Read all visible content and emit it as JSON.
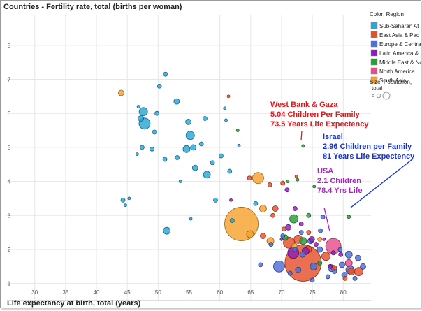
{
  "chart_data": {
    "type": "scatter",
    "title": "Countries - Fertility rate, total (births per woman)",
    "xlabel": "Life expectancy at birth, total (years)",
    "ylabel": "",
    "xlim": [
      25.5,
      84.5
    ],
    "ylim": [
      0.5,
      8.9
    ],
    "xticks": [
      "30",
      "35",
      "40",
      "45",
      "50",
      "55",
      "60",
      "65",
      "70",
      "75",
      "80"
    ],
    "yticks": [
      "1",
      "2",
      "3",
      "4",
      "5",
      "6",
      "7",
      "8"
    ],
    "legend": {
      "title": "Color: Region",
      "entries": [
        {
          "label": "Sub-Saharan At",
          "color": "#2aa6d4"
        },
        {
          "label": "East Asia & Pac",
          "color": "#e5502b"
        },
        {
          "label": "Europe & Centra",
          "color": "#4d6fd6"
        },
        {
          "label": "Latin America &",
          "color": "#8c1eb8"
        },
        {
          "label": "Middle East & Nc",
          "color": "#2b9c3a"
        },
        {
          "label": "North America",
          "color": "#e84d8a"
        },
        {
          "label": "South Asia",
          "color": "#f7a22e"
        }
      ],
      "size_title": "Size: Population,",
      "size_title2": "total"
    },
    "series": [
      {
        "name": "Sub-Saharan At",
        "points": [
          [
            47.6,
            6.05,
            6
          ],
          [
            47.8,
            5.7,
            8
          ],
          [
            47.2,
            5.85,
            4
          ],
          [
            50.2,
            6.8,
            3
          ],
          [
            51.2,
            7.15,
            3
          ],
          [
            49.8,
            6.0,
            3
          ],
          [
            53.0,
            6.35,
            4
          ],
          [
            54.9,
            5.75,
            4
          ],
          [
            55.2,
            5.35,
            6
          ],
          [
            57.6,
            5.85,
            3
          ],
          [
            55.7,
            5.0,
            4
          ],
          [
            54.6,
            4.95,
            5
          ],
          [
            57.0,
            5.1,
            3
          ],
          [
            56.0,
            4.4,
            4
          ],
          [
            58.8,
            4.55,
            3
          ],
          [
            60.2,
            4.75,
            3
          ],
          [
            57.9,
            4.2,
            5
          ],
          [
            53.1,
            4.7,
            3
          ],
          [
            51.1,
            4.65,
            3
          ],
          [
            49.0,
            4.95,
            3
          ],
          [
            49.4,
            5.45,
            3
          ],
          [
            47.4,
            5.0,
            3
          ],
          [
            46.6,
            4.8,
            2
          ],
          [
            45.3,
            3.5,
            2
          ],
          [
            44.3,
            3.45,
            3
          ],
          [
            44.7,
            3.3,
            2
          ],
          [
            51.4,
            2.55,
            5
          ],
          [
            59.3,
            3.45,
            3
          ],
          [
            61.6,
            4.3,
            3
          ],
          [
            62.0,
            2.85,
            3
          ],
          [
            55.3,
            2.9,
            2
          ],
          [
            63.1,
            5.05,
            2
          ],
          [
            61.0,
            5.8,
            2
          ],
          [
            53.6,
            4.0,
            2
          ],
          [
            46.8,
            6.2,
            2
          ],
          [
            65.8,
            3.35,
            3
          ],
          [
            60.8,
            6.15,
            2
          ]
        ]
      },
      {
        "name": "East Asia & Pac",
        "points": [
          [
            73.5,
            1.6,
            26
          ],
          [
            71.2,
            2.2,
            8
          ],
          [
            72.7,
            2.3,
            6
          ],
          [
            77.2,
            1.8,
            6
          ],
          [
            74.3,
            2.0,
            5
          ],
          [
            69.0,
            3.2,
            4
          ],
          [
            67.0,
            2.4,
            4
          ],
          [
            70.4,
            2.6,
            3
          ],
          [
            78.5,
            1.45,
            4
          ],
          [
            81.3,
            1.35,
            5
          ],
          [
            82.5,
            1.35,
            6
          ],
          [
            64.8,
            4.1,
            3
          ],
          [
            68.1,
            3.9,
            3
          ],
          [
            70.2,
            3.95,
            3
          ],
          [
            61.4,
            6.5,
            2
          ],
          [
            74.4,
            2.5,
            3
          ],
          [
            72.4,
            4.15,
            2
          ],
          [
            68.6,
            3.0,
            3
          ],
          [
            80.3,
            1.15,
            3
          ]
        ]
      },
      {
        "name": "Europe & Centra",
        "points": [
          [
            69.6,
            1.5,
            8
          ],
          [
            81.1,
            1.4,
            6
          ],
          [
            80.9,
            1.85,
            5
          ],
          [
            78.1,
            1.45,
            5
          ],
          [
            79.8,
            1.55,
            4
          ],
          [
            73.4,
            1.85,
            4
          ],
          [
            75.2,
            1.5,
            5
          ],
          [
            72.7,
            1.4,
            4
          ],
          [
            82.4,
            1.75,
            4
          ],
          [
            83.2,
            1.5,
            4
          ],
          [
            76.2,
            2.0,
            4
          ],
          [
            76.3,
            2.55,
            3
          ],
          [
            73.2,
            2.5,
            3
          ],
          [
            74.7,
            2.25,
            4
          ],
          [
            78.6,
            1.35,
            3
          ],
          [
            80.2,
            1.25,
            4
          ],
          [
            79.5,
            2.0,
            3
          ],
          [
            77.5,
            1.2,
            3
          ],
          [
            75.0,
            1.1,
            3
          ],
          [
            71.4,
            1.3,
            3
          ],
          [
            81.9,
            1.15,
            3
          ],
          [
            70.2,
            2.4,
            3
          ],
          [
            68.3,
            2.15,
            3
          ],
          [
            72.2,
            2.0,
            3
          ],
          [
            66.6,
            1.55,
            3
          ],
          [
            76.7,
            2.95,
            3
          ]
        ]
      },
      {
        "name": "Latin America &",
        "points": [
          [
            71.9,
            1.9,
            8
          ],
          [
            73.9,
            1.95,
            5
          ],
          [
            74.9,
            2.3,
            4
          ],
          [
            73.2,
            2.75,
            3
          ],
          [
            71.1,
            2.65,
            4
          ],
          [
            72.2,
            3.2,
            3
          ],
          [
            75.6,
            2.15,
            3
          ],
          [
            70.9,
            3.75,
            3
          ],
          [
            77.9,
            1.5,
            3
          ],
          [
            78.4,
            1.9,
            3
          ],
          [
            79.6,
            1.85,
            3
          ],
          [
            76.9,
            2.3,
            2
          ],
          [
            61.8,
            3.45,
            2
          ],
          [
            70.0,
            2.3,
            2
          ]
        ]
      },
      {
        "name": "Middle East & Nc",
        "points": [
          [
            72.0,
            2.9,
            6
          ],
          [
            73.5,
            2.25,
            5
          ],
          [
            70.6,
            2.35,
            4
          ],
          [
            74.4,
            3.0,
            3
          ],
          [
            76.2,
            1.6,
            3
          ],
          [
            72.6,
            4.05,
            2
          ],
          [
            75.3,
            3.85,
            2
          ],
          [
            71.0,
            4.0,
            2
          ],
          [
            62.9,
            5.5,
            2
          ],
          [
            80.9,
            2.96,
            2.5
          ],
          [
            73.5,
            5.04,
            2
          ]
        ]
      },
      {
        "name": "North America",
        "points": [
          [
            78.4,
            2.1,
            11
          ],
          [
            80.9,
            1.6,
            5
          ]
        ]
      },
      {
        "name": "South Asia",
        "points": [
          [
            63.5,
            2.75,
            24
          ],
          [
            66.2,
            4.1,
            8
          ],
          [
            64.9,
            2.45,
            5
          ],
          [
            67.0,
            3.2,
            5
          ],
          [
            68.2,
            2.25,
            5
          ],
          [
            44.0,
            6.6,
            4
          ],
          [
            72.1,
            2.1,
            4
          ],
          [
            76.2,
            2.3,
            3
          ]
        ]
      }
    ],
    "annotations": [
      {
        "color": "#e8151b",
        "lines": [
          "West Bank & Gaza",
          "5.04 Children Per Family",
          "73.5 Years Life Expectency"
        ],
        "target": [
          73.5,
          5.04
        ]
      },
      {
        "color": "#1530d8",
        "lines": [
          "Israel",
          "2.96 Children per Family",
          "81 Years Life Expectency"
        ],
        "target": [
          80.9,
          2.96
        ]
      },
      {
        "color": "#b41ad0",
        "lines": [
          "USA",
          "2.1 Children",
          "78.4 Yrs Life"
        ],
        "target": [
          78.4,
          2.1
        ]
      }
    ]
  }
}
